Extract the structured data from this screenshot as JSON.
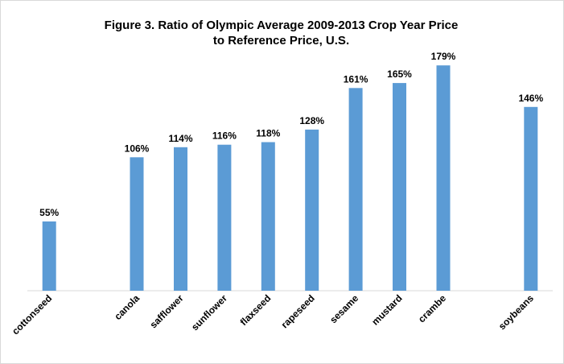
{
  "chart_data": {
    "type": "bar",
    "title_line1": "Figure 3. Ratio of Olympic Average 2009-2013 Crop Year Price",
    "title_line2": "to Reference Price, U.S.",
    "slots": 12,
    "categories": [
      "cottonseed",
      "",
      "canola",
      "safflower",
      "sunflower",
      "flaxseed",
      "rapeseed",
      "sesame",
      "mustard",
      "crambe",
      "",
      "soybeans"
    ],
    "values": [
      55,
      null,
      106,
      114,
      116,
      118,
      128,
      161,
      165,
      179,
      null,
      146
    ],
    "value_labels": [
      "55%",
      "",
      "106%",
      "114%",
      "116%",
      "118%",
      "128%",
      "161%",
      "165%",
      "179%",
      "",
      "146%"
    ],
    "unit": "%",
    "ylim": [
      0,
      190
    ],
    "grid": false,
    "legend": "none",
    "bar_color": "#5B9BD5",
    "axis_color": "#d9d9d9"
  }
}
